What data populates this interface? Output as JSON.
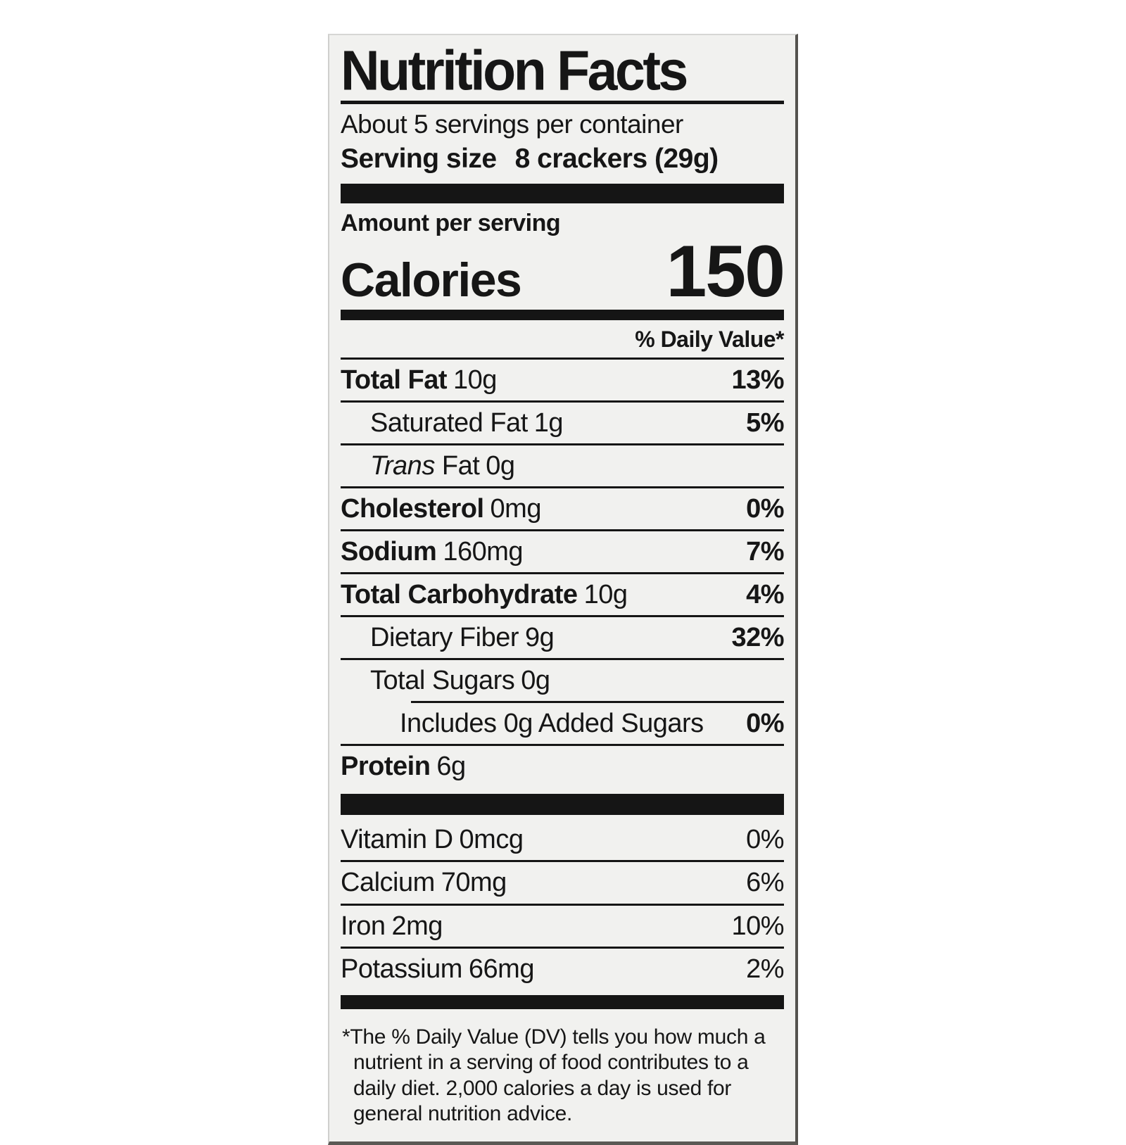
{
  "colors": {
    "panel_bg": "#f1f1ef",
    "ink": "#161616",
    "bar": "#151515",
    "page_bg": "#ffffff"
  },
  "label": {
    "title": "Nutrition Facts",
    "servings_per_container": "About 5 servings per container",
    "serving_size_label": "Serving size",
    "serving_size_value": "8 crackers (29g)",
    "amount_per_serving": "Amount per serving",
    "calories_label": "Calories",
    "calories_value": "150",
    "daily_value_header": "% Daily Value*",
    "rows": [
      {
        "name": "Total Fat",
        "amount": "10g",
        "dv": "13%"
      },
      {
        "name": "Saturated Fat",
        "amount": "1g",
        "dv": "5%"
      },
      {
        "name_italic": "Trans",
        "name": "Fat",
        "amount": "0g",
        "dv": ""
      },
      {
        "name": "Cholesterol",
        "amount": "0mg",
        "dv": "0%"
      },
      {
        "name": "Sodium",
        "amount": "160mg",
        "dv": "7%"
      },
      {
        "name": "Total Carbohydrate",
        "amount": "10g",
        "dv": "4%"
      },
      {
        "name": "Dietary Fiber",
        "amount": "9g",
        "dv": "32%"
      },
      {
        "name": "Total Sugars",
        "amount": "0g",
        "dv": ""
      },
      {
        "name": "Includes 0g Added Sugars",
        "amount": "",
        "dv": "0%"
      },
      {
        "name": "Protein",
        "amount": "6g",
        "dv": ""
      }
    ],
    "micronutrients": [
      {
        "name": "Vitamin D",
        "amount": "0mcg",
        "dv": "0%"
      },
      {
        "name": "Calcium",
        "amount": "70mg",
        "dv": "6%"
      },
      {
        "name": "Iron",
        "amount": "2mg",
        "dv": "10%"
      },
      {
        "name": "Potassium",
        "amount": "66mg",
        "dv": "2%"
      }
    ],
    "footnote": "*The % Daily Value (DV) tells you how much a nutrient in a serving of food contributes to a daily diet. 2,000 calories a day is used for general nutrition advice."
  }
}
